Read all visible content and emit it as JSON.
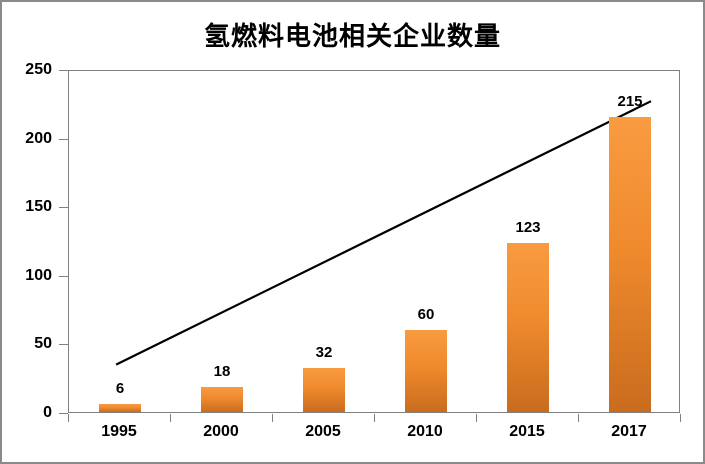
{
  "title": "氢燃料电池相关企业数量",
  "chart_data": {
    "type": "bar",
    "title": "氢燃料电池相关企业数量",
    "categories": [
      "1995",
      "2000",
      "2005",
      "2010",
      "2015",
      "2017"
    ],
    "values": [
      6,
      18,
      32,
      60,
      123,
      215
    ],
    "data_labels": [
      "6",
      "18",
      "32",
      "60",
      "123",
      "215"
    ],
    "xlabel": "",
    "ylabel": "",
    "ylim": [
      0,
      250
    ],
    "yticks": [
      0,
      50,
      100,
      150,
      200,
      250
    ],
    "grid": false,
    "legend": false,
    "bar_color_top": "#F99B41",
    "bar_color_bottom": "#C96C1E",
    "trendline": {
      "color": "#000000",
      "points": [
        {
          "x_frac": 0.077,
          "value": 36
        },
        {
          "x_frac": 0.951,
          "value": 228
        }
      ]
    }
  },
  "colors": {
    "axis": "#808080",
    "outer_border": "#8A8A8A",
    "text": "#000000",
    "background": "#FFFFFF"
  }
}
